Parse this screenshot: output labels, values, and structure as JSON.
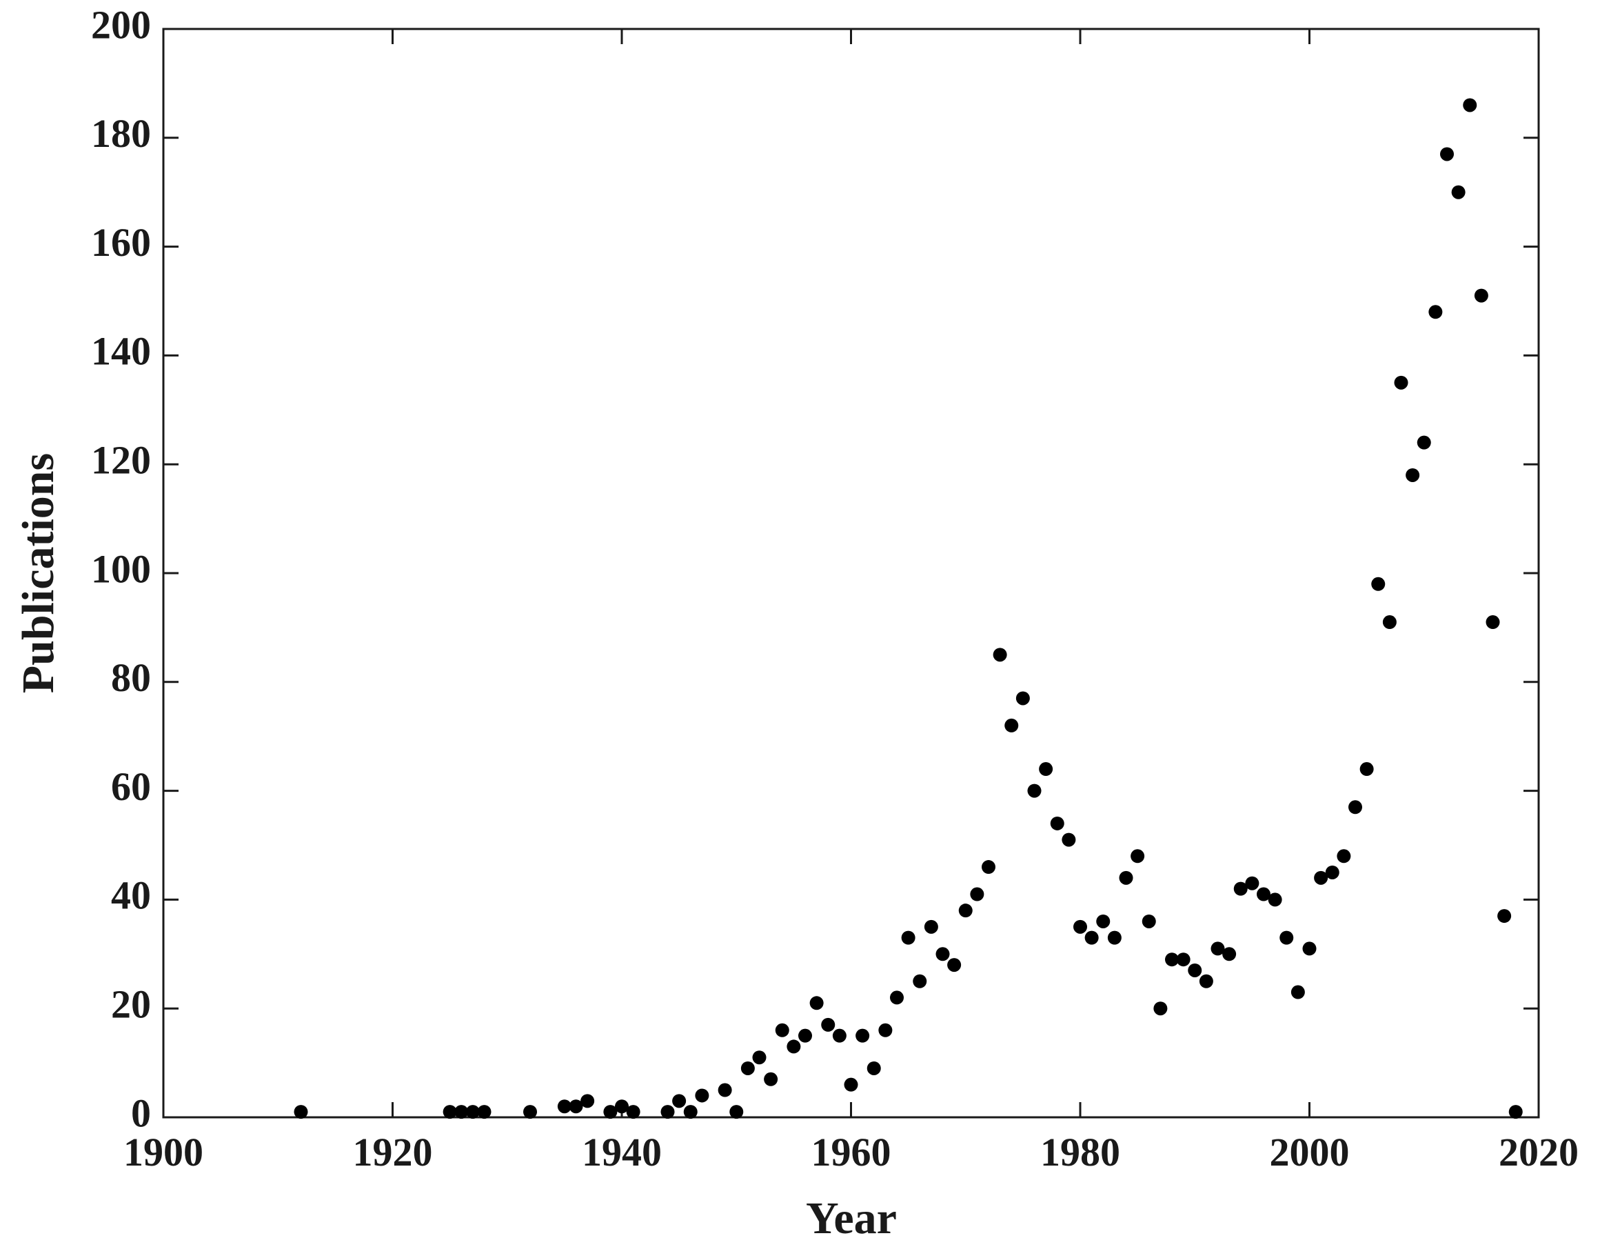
{
  "chart_data": {
    "type": "scatter",
    "xlabel": "Year",
    "ylabel": "Publications",
    "x": [
      1912,
      1925,
      1926,
      1927,
      1928,
      1932,
      1935,
      1936,
      1937,
      1939,
      1940,
      1941,
      1944,
      1945,
      1946,
      1947,
      1949,
      1950,
      1951,
      1952,
      1953,
      1954,
      1955,
      1956,
      1957,
      1958,
      1959,
      1960,
      1961,
      1962,
      1963,
      1964,
      1965,
      1966,
      1967,
      1968,
      1969,
      1970,
      1971,
      1972,
      1973,
      1974,
      1975,
      1976,
      1977,
      1978,
      1979,
      1980,
      1981,
      1982,
      1983,
      1984,
      1985,
      1986,
      1987,
      1988,
      1989,
      1990,
      1991,
      1992,
      1993,
      1994,
      1995,
      1996,
      1997,
      1998,
      1999,
      2000,
      2001,
      2002,
      2003,
      2004,
      2005,
      2006,
      2007,
      2008,
      2009,
      2010,
      2011,
      2012,
      2013,
      2014,
      2015,
      2016,
      2017,
      2018
    ],
    "values": [
      1,
      1,
      1,
      1,
      1,
      1,
      2,
      2,
      3,
      1,
      2,
      1,
      1,
      3,
      1,
      4,
      5,
      1,
      9,
      11,
      7,
      16,
      13,
      15,
      21,
      17,
      15,
      6,
      15,
      9,
      16,
      22,
      33,
      25,
      35,
      30,
      28,
      38,
      41,
      46,
      85,
      72,
      77,
      60,
      64,
      54,
      51,
      35,
      33,
      36,
      33,
      44,
      48,
      36,
      20,
      29,
      29,
      27,
      25,
      31,
      30,
      42,
      43,
      41,
      40,
      33,
      23,
      31,
      44,
      45,
      48,
      57,
      64,
      98,
      91,
      135,
      118,
      124,
      148,
      177,
      170,
      186,
      151,
      91,
      37,
      1
    ],
    "color": "#000000",
    "xlim": [
      1900,
      2020
    ],
    "xticks": [
      1900,
      1920,
      1940,
      1960,
      1980,
      2000,
      2020
    ],
    "ylim": [
      0,
      200
    ],
    "yticks": [
      0,
      20,
      40,
      60,
      80,
      100,
      120,
      140,
      160,
      180,
      200
    ]
  }
}
